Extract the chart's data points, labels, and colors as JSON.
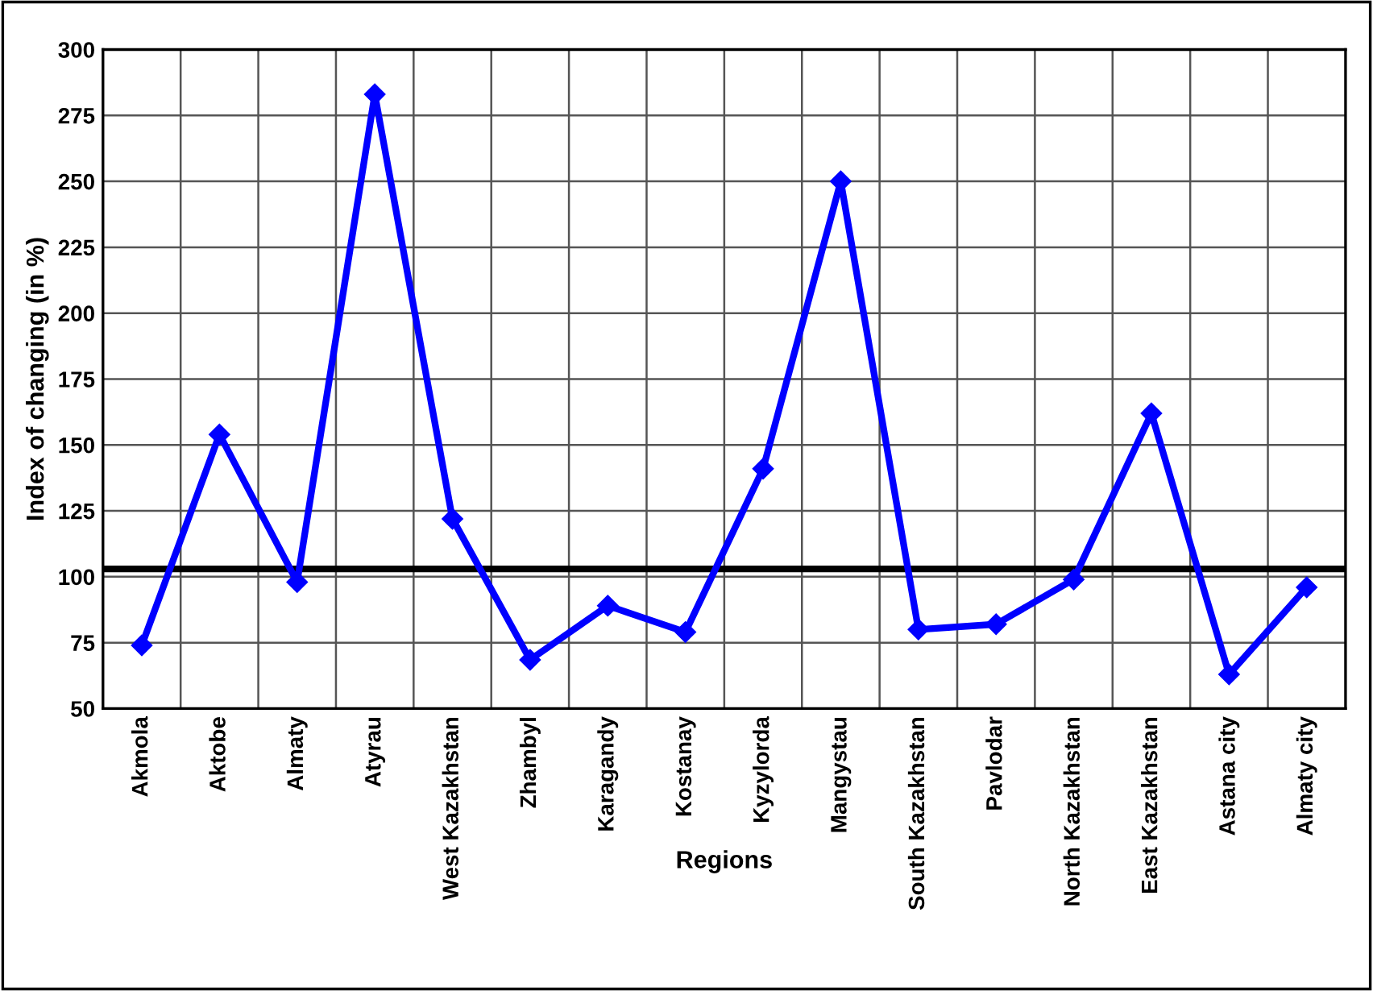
{
  "chart_data": {
    "type": "line",
    "xlabel": "Regions",
    "ylabel": "Index of changing (in %)",
    "categories": [
      "Akmola",
      "Aktobe",
      "Almaty",
      "Atyrau",
      "West Kazakhstan",
      "Zhambyl",
      "Karagandy",
      "Kostanay",
      "Kyzylorda",
      "Mangystau",
      "South Kazakhstan",
      "Pavlodar",
      "North Kazakhstan",
      "East Kazakhstan",
      "Astana city",
      "Almaty city"
    ],
    "series": [
      {
        "color": "#0000ff",
        "values": [
          74,
          154,
          98,
          283,
          122,
          68.5,
          89,
          79,
          141,
          250,
          80,
          82,
          99,
          162,
          63,
          96
        ]
      }
    ],
    "ylim": [
      50,
      300
    ],
    "yticks": [
      50,
      75,
      100,
      125,
      150,
      175,
      200,
      225,
      250,
      275,
      300
    ],
    "ref_lines": [
      {
        "axis": "y",
        "value": 103,
        "color": "#000000",
        "line_style": "solid"
      }
    ],
    "grid": true,
    "marker": "diamond",
    "line_style": "solid",
    "legend": false
  }
}
